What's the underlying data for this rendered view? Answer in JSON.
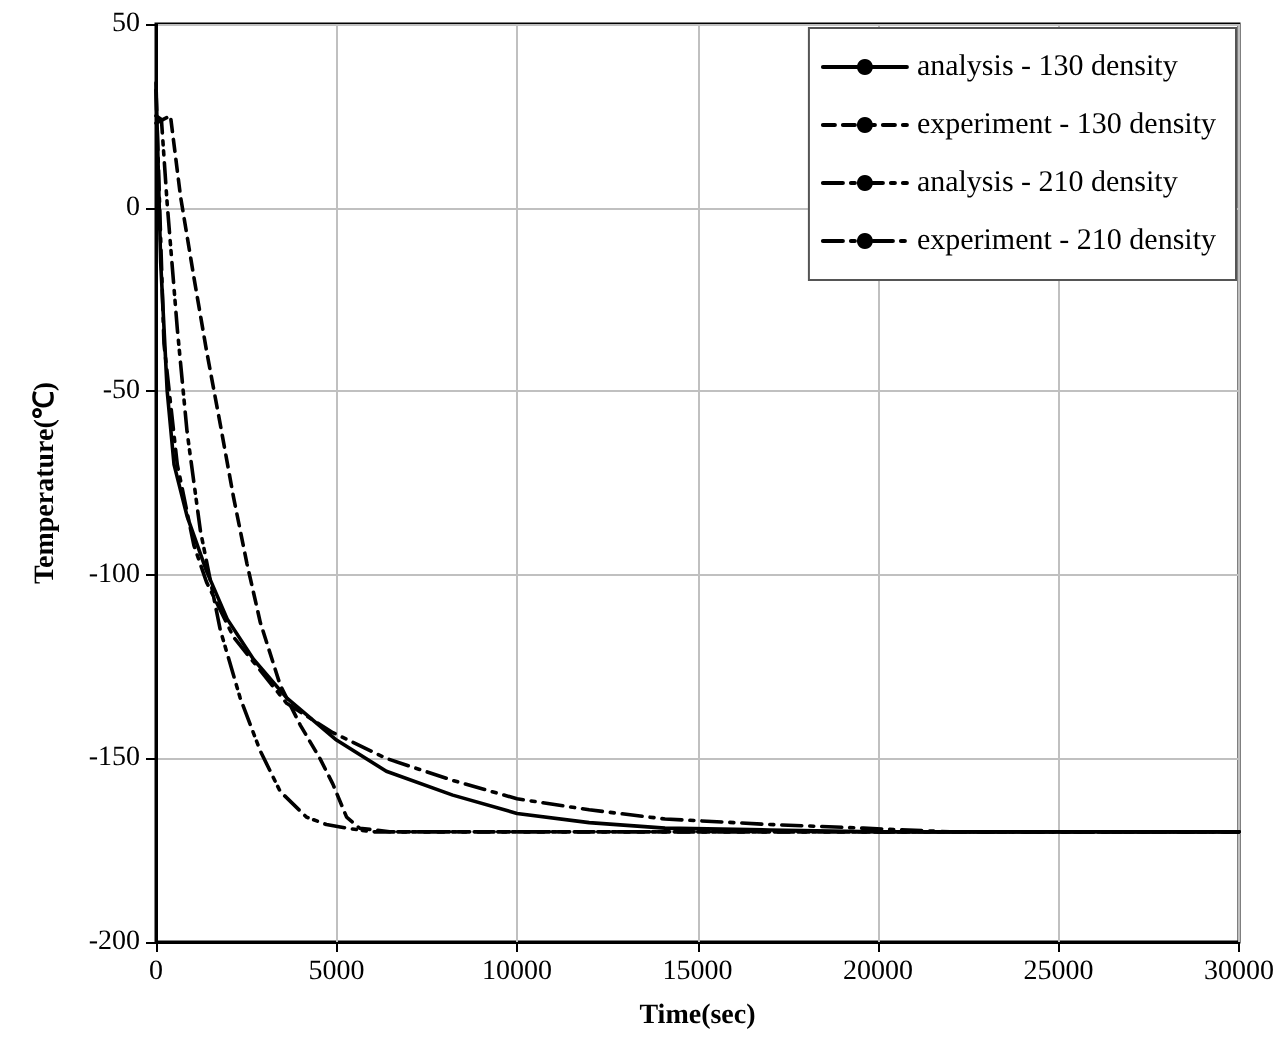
{
  "chart_data": {
    "type": "line",
    "xlabel": "Time(sec)",
    "ylabel": "Temperature(℃)",
    "xlim": [
      0,
      30000
    ],
    "xticks": [
      0,
      5000,
      10000,
      15000,
      20000,
      25000,
      30000
    ],
    "ylim": [
      -200,
      50
    ],
    "yticks": [
      -200,
      -150,
      -100,
      -50,
      0,
      50
    ],
    "grid": true,
    "legend": "top right",
    "marker": "none",
    "series": [
      {
        "name": "analysis - 130 density",
        "color": "#000000",
        "line_style": "solid",
        "x": [
          0,
          130,
          310,
          500,
          860,
          1400,
          1970,
          2700,
          3620,
          5000,
          6380,
          8220,
          10000,
          12000,
          14100,
          17000,
          20000,
          25000,
          30000
        ],
        "values": [
          34,
          -15,
          -50,
          -70,
          -84,
          -99,
          -112,
          -123,
          -133.5,
          -145,
          -153.5,
          -160,
          -165,
          -167.5,
          -169,
          -169.5,
          -170,
          -170,
          -170
        ]
      },
      {
        "name": "experiment - 130 density",
        "color": "#000000",
        "line_style": "dashed",
        "x": [
          0,
          400,
          680,
          1050,
          1400,
          1780,
          2150,
          2520,
          2890,
          3440,
          4000,
          4540,
          4900,
          5280,
          5640,
          6500,
          10000,
          15000,
          20000,
          25000,
          30000
        ],
        "values": [
          23,
          25,
          3,
          -19,
          -39,
          -59,
          -79,
          -97,
          -113,
          -130,
          -141,
          -150,
          -157,
          -166,
          -169,
          -170,
          -170,
          -170,
          -170,
          -170,
          -170
        ]
      },
      {
        "name": "analysis - 210 density",
        "color": "#000000",
        "line_style": "dashdot",
        "x": [
          0,
          220,
          590,
          1050,
          1400,
          2150,
          3620,
          4900,
          6380,
          8220,
          10000,
          12000,
          14100,
          17000,
          19600,
          22000,
          25000,
          30000
        ],
        "values": [
          32,
          -37,
          -70,
          -92,
          -102,
          -117,
          -135,
          -143,
          -150,
          -156,
          -161,
          -164,
          -166.5,
          -168,
          -169,
          -170,
          -170,
          -170
        ]
      },
      {
        "name": "experiment - 210 density",
        "color": "#000000",
        "line_style": "dashdotdot",
        "x": [
          0,
          150,
          310,
          590,
          860,
          1230,
          1780,
          2330,
          2890,
          3440,
          4170,
          4720,
          5280,
          6000,
          10000,
          15000,
          20000,
          25000,
          30000
        ],
        "values": [
          25,
          24,
          1,
          -33,
          -61,
          -88,
          -115,
          -133.5,
          -148,
          -159,
          -166,
          -168,
          -169,
          -170,
          -170,
          -170,
          -170,
          -170,
          -170
        ]
      }
    ]
  }
}
